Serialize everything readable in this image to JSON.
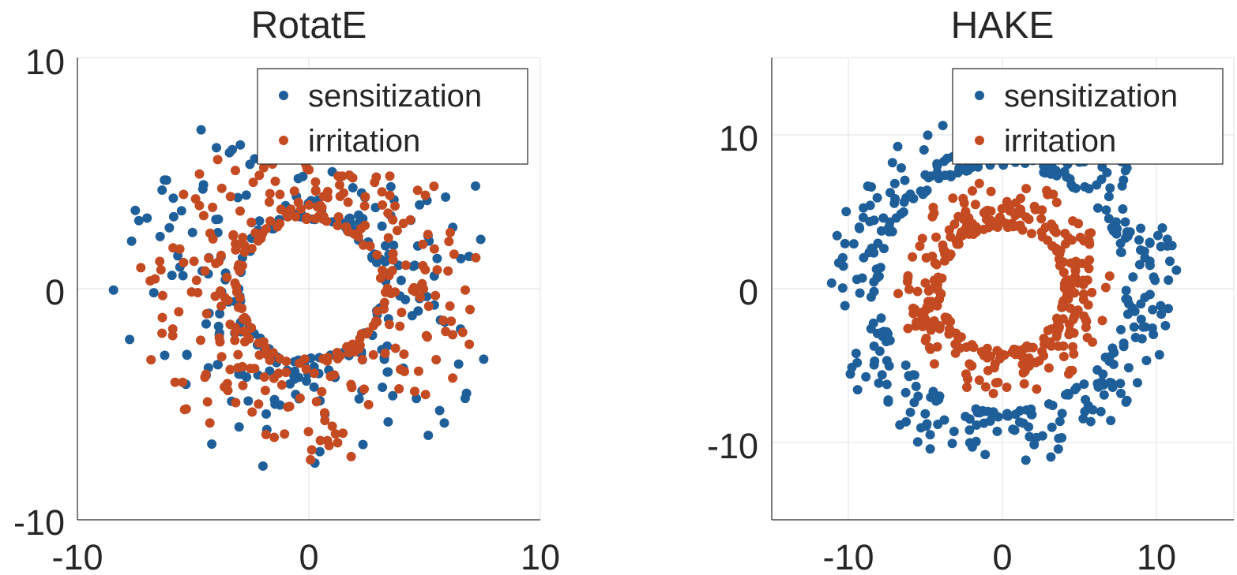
{
  "chart_data": [
    {
      "type": "scatter",
      "title": "RotatE",
      "xlabel": "",
      "ylabel": "",
      "xlim": [
        -10,
        10
      ],
      "ylim": [
        -10,
        10
      ],
      "xticks": [
        "-10",
        "0",
        "10"
      ],
      "yticks": [
        "10",
        "0",
        "-10"
      ],
      "grid": true,
      "legend_position": "top-right",
      "series": [
        {
          "name": "sensitization",
          "color": "#1f5f99",
          "distribution": {
            "shape": "ring",
            "center": [
              0,
              0
            ],
            "radius_min": 3.0,
            "radius_max": 8.5,
            "count": 260
          }
        },
        {
          "name": "irritation",
          "color": "#c44a22",
          "distribution": {
            "shape": "ring",
            "center": [
              0,
              0
            ],
            "radius_min": 3.0,
            "radius_max": 7.5,
            "count": 320
          }
        }
      ]
    },
    {
      "type": "scatter",
      "title": "HAKE",
      "xlabel": "",
      "ylabel": "",
      "xlim": [
        -15,
        15
      ],
      "ylim": [
        -15,
        15
      ],
      "xticks": [
        "-10",
        "0",
        "10"
      ],
      "yticks": [
        "10",
        "0",
        "-10"
      ],
      "grid": true,
      "legend_position": "top-right",
      "series": [
        {
          "name": "sensitization",
          "color": "#1f5f99",
          "distribution": {
            "shape": "ring",
            "center": [
              0,
              0
            ],
            "radius_min": 8.0,
            "radius_max": 11.5,
            "count": 360
          }
        },
        {
          "name": "irritation",
          "color": "#c44a22",
          "distribution": {
            "shape": "ring",
            "center": [
              0,
              0
            ],
            "radius_min": 4.0,
            "radius_max": 7.0,
            "count": 330
          }
        }
      ]
    }
  ]
}
